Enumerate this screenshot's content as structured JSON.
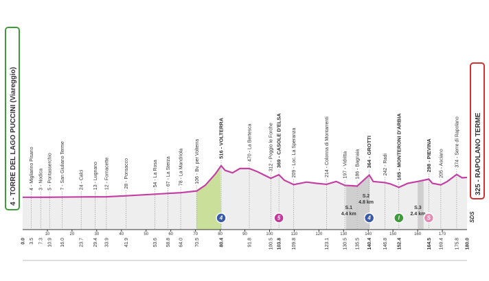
{
  "chart_data": {
    "type": "area",
    "start": {
      "label": "4 - TORRE DEL LAGO PUCCINI (Viareggio)",
      "km": {
        "value": 0,
        "label": "0.0"
      }
    },
    "finish": {
      "label": "325 - RAPOLANO TERME",
      "km": {
        "value": 180,
        "label": "180.0"
      }
    },
    "places": [
      {
        "label": "4 - Migliarino Pisano",
        "km": 3.5
      },
      {
        "label": "3 - Nodica",
        "km": 7.3
      },
      {
        "label": "5 - Pontasserchio",
        "km": 10.9
      },
      {
        "label": "7 - San Giuliano Terme",
        "km": {
          "value": 16,
          "label": "16.0"
        }
      },
      {
        "label": "24 - Calci",
        "km": 23.7
      },
      {
        "label": "13 - Lugnano",
        "km": 29.4
      },
      {
        "label": "12 - Fornacette",
        "km": 33.9
      },
      {
        "label": "28 - Ponsacco",
        "km": 41.9
      },
      {
        "label": "54 - La Rosa",
        "km": 53.6
      },
      {
        "label": "67 - La Sterza",
        "km": 58.8
      },
      {
        "label": "78 - La Mandriola",
        "km": {
          "value": 64,
          "label": "64.0"
        }
      },
      {
        "label": "106 - Bv. per Volterra",
        "km": 70.5
      },
      {
        "label": "516 - VOLTERRA",
        "km": 80.4
      },
      {
        "label": "470 - La Bertesca",
        "km": 91.8
      },
      {
        "label": "312 - Poggio le Forche",
        "km": 100.5
      },
      {
        "label": "369 - CASOLE D'ELSA",
        "km": 103.8
      },
      {
        "label": "209 - Loc. La Speranza",
        "km": 109.8
      },
      {
        "label": "214 - Colonna di Montarrenti",
        "km": 123.1
      },
      {
        "label": "197 - Vidritta",
        "km": 130.5
      },
      {
        "label": "186 - Bagnaia",
        "km": 135.5
      },
      {
        "label": "364 - GROTTI",
        "km": 140.4
      },
      {
        "label": "242 - Radi",
        "km": 146.8
      },
      {
        "label": "165 - MONTERONI D'ARBIA",
        "km": 152.4
      },
      {
        "label": "298 - PIEVINA",
        "km": 164.5
      },
      {
        "label": "205 - Asciano",
        "km": 169.4
      },
      {
        "label": "374 - Serre di Rapolano",
        "km": 175.8
      }
    ],
    "x": [
      0,
      3.5,
      10.9,
      16,
      23.7,
      33.9,
      41.9,
      53.6,
      58.8,
      64,
      70.5,
      74,
      78,
      80.4,
      82,
      85,
      88,
      91.8,
      95,
      100.5,
      103.8,
      106,
      109.8,
      115,
      119,
      123.1,
      127,
      130.5,
      135.5,
      140.4,
      142,
      146.8,
      149,
      152.4,
      156,
      160,
      164.5,
      166,
      169.4,
      172,
      175.8,
      178,
      180
    ],
    "values": [
      4,
      4,
      5,
      7,
      10,
      12,
      28,
      54,
      67,
      78,
      106,
      200,
      380,
      516,
      440,
      400,
      470,
      470,
      420,
      312,
      369,
      280,
      209,
      250,
      230,
      214,
      260,
      197,
      186,
      364,
      260,
      242,
      220,
      165,
      230,
      260,
      298,
      230,
      205,
      260,
      374,
      320,
      325
    ],
    "color": "#c43fa4",
    "fill": "#eeeeee",
    "climb_fill": "#c9df9a",
    "climb": [
      70.5,
      80.4
    ],
    "xlim": [
      0,
      180
    ],
    "ylim": [
      -520,
      2535
    ],
    "xticks": [
      10,
      20,
      30,
      40,
      50,
      60,
      70,
      80,
      90,
      100,
      110,
      120,
      130,
      140,
      150,
      160,
      170
    ],
    "sectors": [
      {
        "label": "S.1",
        "length": "4.4 km",
        "from": 131,
        "to": 135.4
      },
      {
        "label": "S.2",
        "length": "4.8 km",
        "from": 135.6,
        "to": 140.4
      },
      {
        "label": "S.3",
        "length": "2.4 km",
        "from": 160,
        "to": 162.4
      }
    ],
    "markers": [
      {
        "symbol": "4",
        "km": 80.4,
        "color": "#3b5aa6"
      },
      {
        "symbol": "5",
        "km": 103.8,
        "color": "#c2399a"
      },
      {
        "symbol": "4",
        "km": 140.4,
        "color": "#3b5aa6"
      },
      {
        "symbol": "I",
        "km": 152.4,
        "color": "#3e9a3a"
      },
      {
        "symbol": "S",
        "km": 164.5,
        "color": "#e58ab2"
      }
    ],
    "brand": "SDS"
  }
}
